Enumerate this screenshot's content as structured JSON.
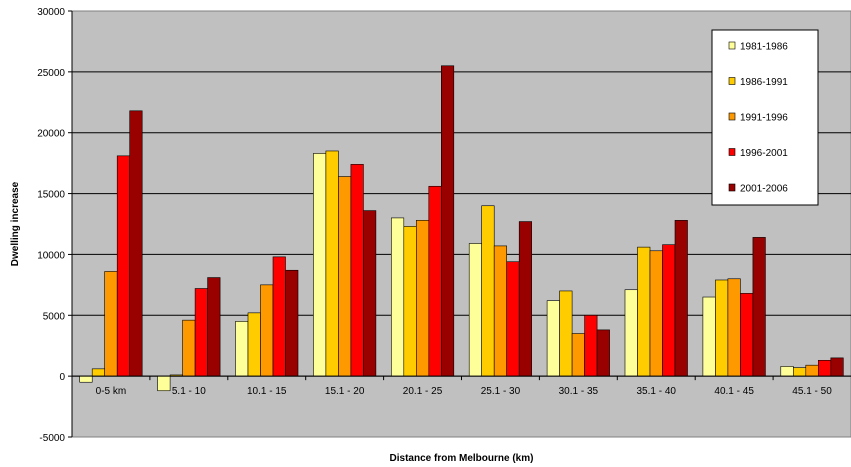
{
  "chart_data": {
    "type": "bar",
    "title": "",
    "xlabel": "Distance from Melbourne (km)",
    "ylabel": "Dwelling increase",
    "ylim": [
      -5000,
      30000
    ],
    "yticks": [
      "-5000",
      "0",
      "5000",
      "10000",
      "15000",
      "20000",
      "25000",
      "30000"
    ],
    "grid": true,
    "legend_position": "top-right",
    "plot_background": "#c0c0c0",
    "categories": [
      "0-5 km",
      "5.1 - 10",
      "10.1 - 15",
      "15.1 - 20",
      "20.1 - 25",
      "25.1 - 30",
      "30.1 - 35",
      "35.1 - 40",
      "40.1 - 45",
      "45.1 - 50"
    ],
    "series": [
      {
        "name": "1981-1986",
        "color": "#ffff99",
        "values": [
          -500,
          -1200,
          4500,
          18300,
          13000,
          10900,
          6200,
          7100,
          6500,
          800
        ]
      },
      {
        "name": "1986-1991",
        "color": "#ffcc00",
        "values": [
          600,
          100,
          5200,
          18500,
          12300,
          14000,
          7000,
          10600,
          7900,
          700
        ]
      },
      {
        "name": "1991-1996",
        "color": "#ff9900",
        "values": [
          8600,
          4600,
          7500,
          16400,
          12800,
          10700,
          3500,
          10300,
          8000,
          900
        ]
      },
      {
        "name": "1996-2001",
        "color": "#ff0000",
        "values": [
          18100,
          7200,
          9800,
          17400,
          15600,
          9400,
          5000,
          10800,
          6800,
          1300
        ]
      },
      {
        "name": "2001-2006",
        "color": "#990000",
        "values": [
          21800,
          8100,
          8700,
          13600,
          25500,
          12700,
          3800,
          12800,
          11400,
          1500
        ]
      }
    ]
  }
}
